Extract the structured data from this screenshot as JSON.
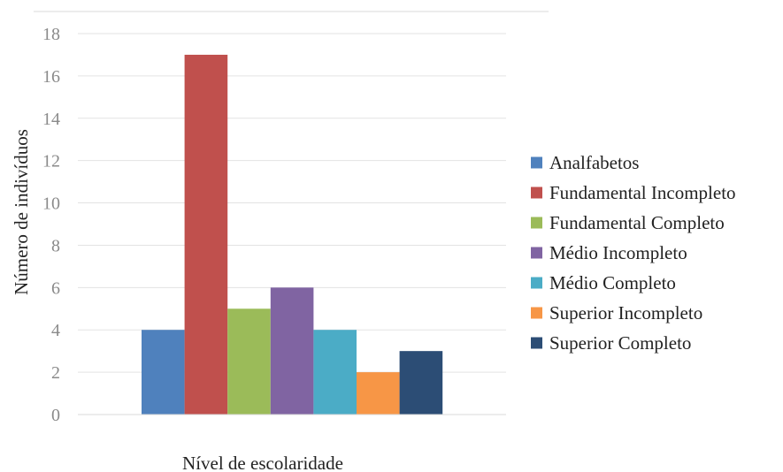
{
  "chart_data": {
    "type": "bar",
    "xlabel": "Nível de escolaridade",
    "ylabel": "Número de indivíduos",
    "ylim": [
      0,
      18
    ],
    "yticks": [
      0,
      2,
      4,
      6,
      8,
      10,
      12,
      14,
      16,
      18
    ],
    "grid": true,
    "legend_position": "right",
    "series": [
      {
        "name": "Analfabetos",
        "value": 4,
        "color": "#4f81bd"
      },
      {
        "name": "Fundamental Incompleto",
        "value": 17,
        "color": "#c0504d"
      },
      {
        "name": "Fundamental Completo",
        "value": 5,
        "color": "#9bbb59"
      },
      {
        "name": "Médio Incompleto",
        "value": 6,
        "color": "#8064a2"
      },
      {
        "name": "Médio Completo",
        "value": 4,
        "color": "#4bacc6"
      },
      {
        "name": "Superior Incompleto",
        "value": 2,
        "color": "#f79646"
      },
      {
        "name": "Superior Completo",
        "value": 3,
        "color": "#2c4d75"
      }
    ]
  }
}
